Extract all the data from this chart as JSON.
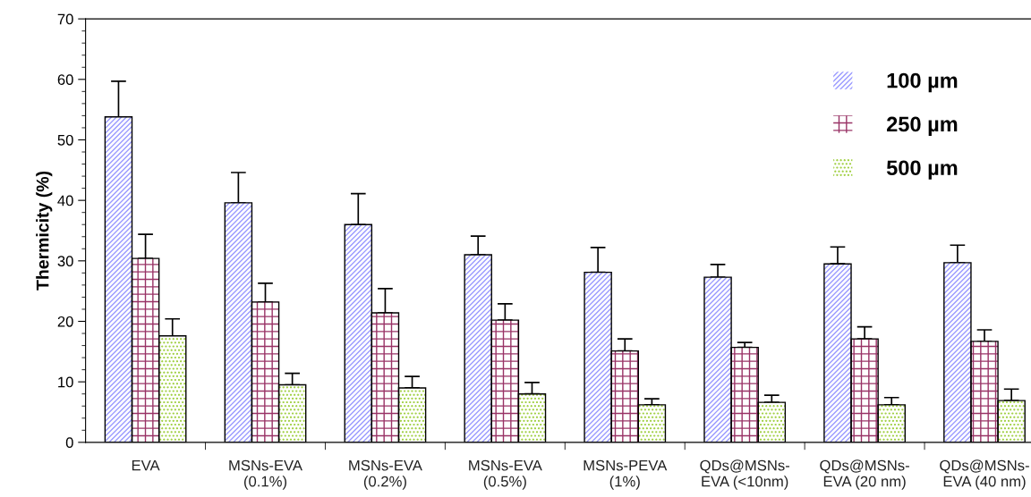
{
  "chart_data": {
    "type": "bar",
    "ylabel": "Thermicity (%)",
    "categories": [
      "EVA",
      "MSNs-EVA\n(0.1%)",
      "MSNs-EVA\n(0.2%)",
      "MSNs-EVA\n(0.5%)",
      "MSNs-PEVA\n(1%)",
      "QDs@MSNs-\nEVA (<10nm)",
      "QDs@MSNs-\nEVA (20 nm)",
      "QDs@MSNs-\nEVA (40 nm)"
    ],
    "series": [
      {
        "name": "100 µm",
        "color": "#9999ff",
        "values": [
          53.8,
          39.6,
          36.0,
          31.0,
          28.1,
          27.3,
          29.5,
          29.7
        ],
        "errors": [
          [
            53.8,
            59.7
          ],
          [
            39.6,
            44.6
          ],
          [
            36.0,
            41.1
          ],
          [
            31.0,
            34.1
          ],
          [
            28.1,
            32.2
          ],
          [
            27.3,
            29.4
          ],
          [
            29.5,
            32.3
          ],
          [
            29.7,
            32.6
          ]
        ]
      },
      {
        "name": "250 µm",
        "color": "#993366",
        "values": [
          30.4,
          23.2,
          21.4,
          20.2,
          15.1,
          15.7,
          17.1,
          16.7
        ],
        "errors": [
          [
            30.4,
            34.4
          ],
          [
            23.2,
            26.3
          ],
          [
            21.4,
            25.4
          ],
          [
            20.2,
            22.9
          ],
          [
            15.1,
            17.1
          ],
          [
            15.7,
            16.5
          ],
          [
            17.1,
            19.1
          ],
          [
            16.7,
            18.6
          ]
        ]
      },
      {
        "name": "500 µm",
        "color": "#99cc33",
        "values": [
          17.6,
          9.5,
          9.0,
          8.0,
          6.2,
          6.6,
          6.2,
          6.9
        ],
        "errors": [
          [
            17.6,
            20.4
          ],
          [
            9.5,
            11.4
          ],
          [
            9.0,
            10.9
          ],
          [
            8.0,
            9.9
          ],
          [
            6.2,
            7.2
          ],
          [
            6.6,
            7.8
          ],
          [
            6.2,
            7.4
          ],
          [
            6.9,
            8.8
          ]
        ]
      }
    ],
    "ylim": [
      0,
      70
    ],
    "yticks": [
      0,
      10,
      20,
      30,
      40,
      50,
      60,
      70
    ],
    "legend": "top right",
    "grid": false
  }
}
